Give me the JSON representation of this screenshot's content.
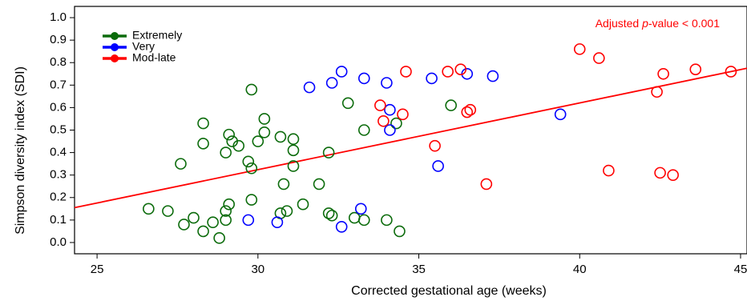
{
  "chart_data": {
    "type": "scatter",
    "xlabel": "Corrected gestational age (weeks)",
    "ylabel": "Simpson diversity index (SDI)",
    "xlim": [
      24.3,
      45.2
    ],
    "ylim": [
      -0.05,
      1.05
    ],
    "x_ticks": [
      25,
      30,
      35,
      40,
      45
    ],
    "y_ticks": [
      0.0,
      0.1,
      0.2,
      0.3,
      0.4,
      0.5,
      0.6,
      0.7,
      0.8,
      0.9,
      1.0
    ],
    "y_tick_labels": [
      "0.0",
      "0.1",
      "0.2",
      "0.3",
      "0.4",
      "0.5",
      "0.6",
      "0.7",
      "0.8",
      "0.9",
      "1.0"
    ],
    "grid": false,
    "legend_position": "top-left",
    "annotation": {
      "prefix": "Adjusted ",
      "italic": "p",
      "suffix": "-value < 0.001",
      "color": "#ff0000"
    },
    "regression": {
      "color": "#ff0000",
      "x": [
        24.3,
        45.2
      ],
      "y": [
        0.155,
        0.775
      ]
    },
    "series": [
      {
        "name": "Extremely",
        "color": "#0b6b0b",
        "points": [
          [
            26.6,
            0.15
          ],
          [
            27.2,
            0.14
          ],
          [
            27.6,
            0.35
          ],
          [
            27.7,
            0.08
          ],
          [
            28.0,
            0.11
          ],
          [
            28.3,
            0.05
          ],
          [
            28.3,
            0.53
          ],
          [
            28.3,
            0.44
          ],
          [
            28.6,
            0.09
          ],
          [
            28.8,
            0.02
          ],
          [
            29.0,
            0.4
          ],
          [
            29.0,
            0.14
          ],
          [
            29.0,
            0.1
          ],
          [
            29.1,
            0.17
          ],
          [
            29.1,
            0.48
          ],
          [
            29.2,
            0.45
          ],
          [
            29.4,
            0.43
          ],
          [
            29.7,
            0.36
          ],
          [
            29.8,
            0.33
          ],
          [
            29.8,
            0.68
          ],
          [
            29.8,
            0.19
          ],
          [
            30.0,
            0.45
          ],
          [
            30.2,
            0.49
          ],
          [
            30.2,
            0.55
          ],
          [
            30.7,
            0.47
          ],
          [
            30.7,
            0.13
          ],
          [
            30.8,
            0.26
          ],
          [
            30.9,
            0.14
          ],
          [
            31.1,
            0.46
          ],
          [
            31.1,
            0.41
          ],
          [
            31.1,
            0.34
          ],
          [
            31.4,
            0.17
          ],
          [
            31.9,
            0.26
          ],
          [
            32.2,
            0.4
          ],
          [
            32.2,
            0.13
          ],
          [
            32.3,
            0.12
          ],
          [
            32.8,
            0.62
          ],
          [
            33.0,
            0.11
          ],
          [
            33.3,
            0.5
          ],
          [
            33.3,
            0.1
          ],
          [
            34.0,
            0.1
          ],
          [
            34.3,
            0.53
          ],
          [
            34.4,
            0.05
          ],
          [
            36.0,
            0.61
          ]
        ]
      },
      {
        "name": "Very",
        "color": "#0000ff",
        "points": [
          [
            29.7,
            0.1
          ],
          [
            30.6,
            0.09
          ],
          [
            31.6,
            0.69
          ],
          [
            32.3,
            0.71
          ],
          [
            32.6,
            0.76
          ],
          [
            32.6,
            0.07
          ],
          [
            33.2,
            0.15
          ],
          [
            33.3,
            0.73
          ],
          [
            34.0,
            0.71
          ],
          [
            34.1,
            0.5
          ],
          [
            34.1,
            0.59
          ],
          [
            35.4,
            0.73
          ],
          [
            35.6,
            0.34
          ],
          [
            36.5,
            0.75
          ],
          [
            37.3,
            0.74
          ],
          [
            39.4,
            0.57
          ]
        ]
      },
      {
        "name": "Mod-late",
        "color": "#ff0000",
        "points": [
          [
            33.8,
            0.61
          ],
          [
            33.9,
            0.54
          ],
          [
            34.5,
            0.57
          ],
          [
            34.6,
            0.76
          ],
          [
            35.5,
            0.43
          ],
          [
            35.9,
            0.76
          ],
          [
            36.3,
            0.77
          ],
          [
            36.5,
            0.58
          ],
          [
            36.6,
            0.59
          ],
          [
            37.1,
            0.26
          ],
          [
            40.0,
            0.86
          ],
          [
            40.6,
            0.82
          ],
          [
            40.9,
            0.32
          ],
          [
            42.4,
            0.67
          ],
          [
            42.5,
            0.31
          ],
          [
            42.6,
            0.75
          ],
          [
            42.9,
            0.3
          ],
          [
            43.6,
            0.77
          ],
          [
            44.7,
            0.76
          ]
        ]
      }
    ]
  }
}
